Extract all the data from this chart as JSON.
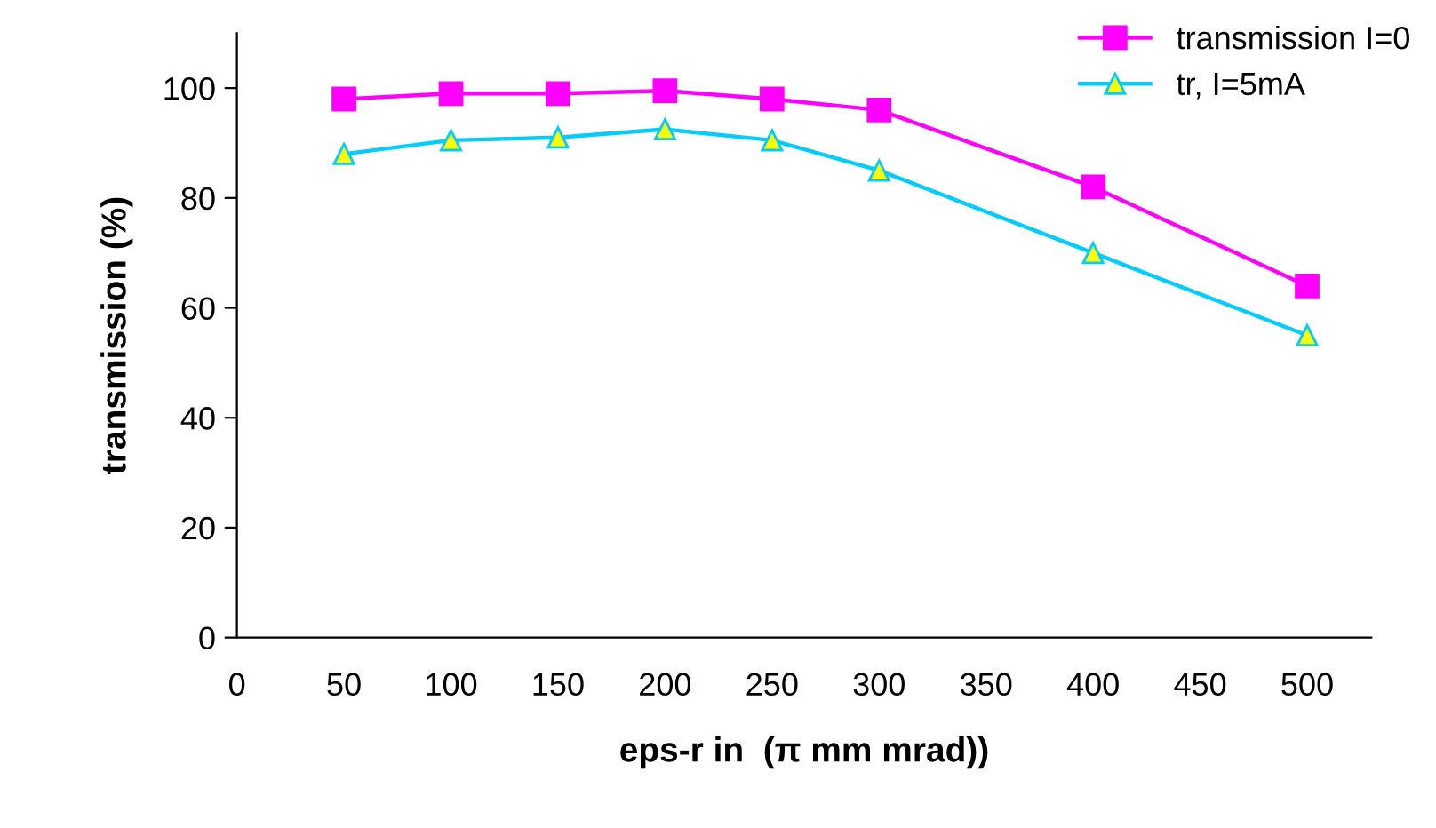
{
  "chart_data": {
    "type": "line",
    "xlabel": "eps-r in  (π mm mrad))",
    "ylabel": "transmission (%)",
    "x": [
      50,
      100,
      150,
      200,
      250,
      300,
      400,
      500
    ],
    "series": [
      {
        "name": "transmission I=0",
        "color": "#ff00ff",
        "marker": "square",
        "values": [
          98,
          99,
          99,
          99.5,
          98,
          96,
          82,
          64
        ]
      },
      {
        "name": "tr, I=5mA",
        "color": "#00ccff",
        "marker": "triangle",
        "values": [
          88,
          90.5,
          91,
          92.5,
          90.5,
          85,
          70,
          55
        ]
      }
    ],
    "xlim": [
      0,
      530
    ],
    "xticks": [
      0,
      50,
      100,
      150,
      200,
      250,
      300,
      350,
      400,
      450,
      500
    ],
    "ylim": [
      0,
      110
    ],
    "yticks": [
      0,
      20,
      40,
      60,
      80,
      100
    ],
    "grid": false,
    "legend": "top right",
    "line_style": "solid"
  }
}
